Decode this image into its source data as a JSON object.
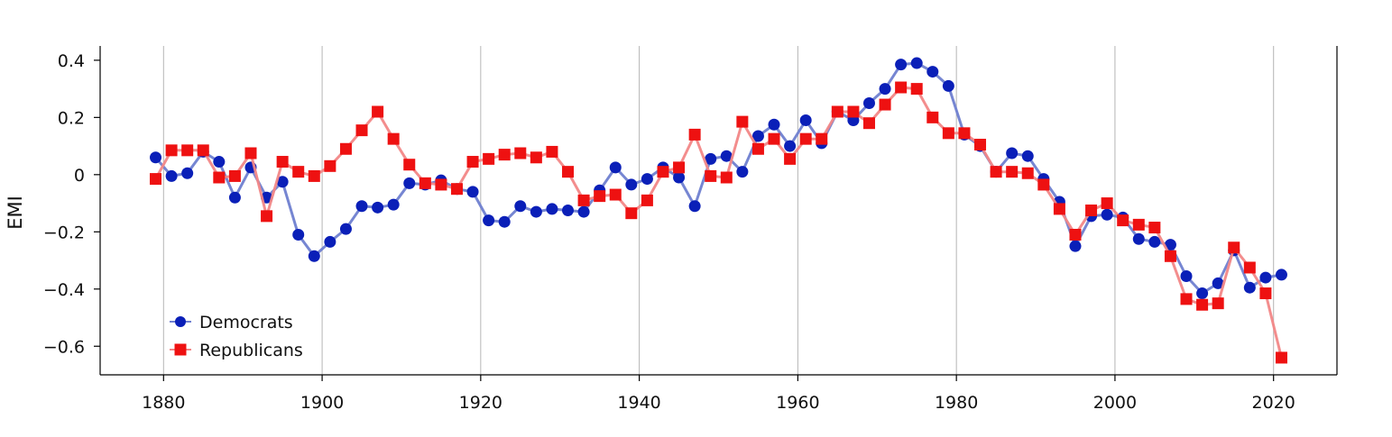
{
  "chart_data": {
    "type": "line",
    "ylabel": "EMI",
    "xlim": [
      1872,
      2028
    ],
    "ylim": [
      -0.7,
      0.45
    ],
    "x_ticks": [
      1880,
      1900,
      1920,
      1940,
      1960,
      1980,
      2000,
      2020
    ],
    "y_ticks": [
      0.4,
      0.2,
      0,
      -0.2,
      -0.4,
      -0.6
    ],
    "y_tick_labels": [
      "0.4",
      "0.2",
      "0",
      "−0.2",
      "−0.4",
      "−0.6"
    ],
    "grid": "vertical",
    "legend_position": "bottom-left",
    "series": [
      {
        "name": "Democrats",
        "color": "#0a1fb8",
        "line_color": "#6f7fd0",
        "marker": "circle",
        "x": [
          1879,
          1881,
          1883,
          1885,
          1887,
          1889,
          1891,
          1893,
          1895,
          1897,
          1899,
          1901,
          1903,
          1905,
          1907,
          1909,
          1911,
          1913,
          1915,
          1917,
          1919,
          1921,
          1923,
          1925,
          1927,
          1929,
          1931,
          1933,
          1935,
          1937,
          1939,
          1941,
          1943,
          1945,
          1947,
          1949,
          1951,
          1953,
          1955,
          1957,
          1959,
          1961,
          1963,
          1965,
          1967,
          1969,
          1971,
          1973,
          1975,
          1977,
          1979,
          1981,
          1983,
          1985,
          1987,
          1989,
          1991,
          1993,
          1995,
          1997,
          1999,
          2001,
          2003,
          2005,
          2007,
          2009,
          2011,
          2013,
          2015,
          2017,
          2019,
          2021
        ],
        "values": [
          0.06,
          -0.005,
          0.005,
          0.08,
          0.045,
          -0.08,
          0.025,
          -0.08,
          -0.025,
          -0.21,
          -0.285,
          -0.235,
          -0.19,
          -0.11,
          -0.115,
          -0.105,
          -0.03,
          -0.035,
          -0.02,
          -0.05,
          -0.06,
          -0.16,
          -0.165,
          -0.11,
          -0.13,
          -0.12,
          -0.125,
          -0.13,
          -0.055,
          0.025,
          -0.035,
          -0.015,
          0.025,
          -0.01,
          -0.11,
          0.055,
          0.065,
          0.01,
          0.135,
          0.175,
          0.1,
          0.19,
          0.11,
          0.22,
          0.19,
          0.25,
          0.3,
          0.385,
          0.39,
          0.36,
          0.31,
          0.14,
          0.1,
          0.01,
          0.075,
          0.065,
          -0.015,
          -0.095,
          -0.25,
          -0.145,
          -0.14,
          -0.15,
          -0.225,
          -0.235,
          -0.245,
          -0.355,
          -0.415,
          -0.38,
          -0.265,
          -0.395,
          -0.36,
          -0.35
        ]
      },
      {
        "name": "Republicans",
        "color": "#ee1111",
        "line_color": "#f28787",
        "marker": "square",
        "x": [
          1879,
          1881,
          1883,
          1885,
          1887,
          1889,
          1891,
          1893,
          1895,
          1897,
          1899,
          1901,
          1903,
          1905,
          1907,
          1909,
          1911,
          1913,
          1915,
          1917,
          1919,
          1921,
          1923,
          1925,
          1927,
          1929,
          1931,
          1933,
          1935,
          1937,
          1939,
          1941,
          1943,
          1945,
          1947,
          1949,
          1951,
          1953,
          1955,
          1957,
          1959,
          1961,
          1963,
          1965,
          1967,
          1969,
          1971,
          1973,
          1975,
          1977,
          1979,
          1981,
          1983,
          1985,
          1987,
          1989,
          1991,
          1993,
          1995,
          1997,
          1999,
          2001,
          2003,
          2005,
          2007,
          2009,
          2011,
          2013,
          2015,
          2017,
          2019,
          2021
        ],
        "values": [
          -0.015,
          0.085,
          0.085,
          0.085,
          -0.01,
          -0.005,
          0.075,
          -0.145,
          0.045,
          0.01,
          -0.005,
          0.03,
          0.09,
          0.155,
          0.22,
          0.125,
          0.035,
          -0.03,
          -0.035,
          -0.05,
          0.045,
          0.055,
          0.07,
          0.075,
          0.06,
          0.08,
          0.01,
          -0.09,
          -0.075,
          -0.07,
          -0.135,
          -0.09,
          0.01,
          0.025,
          0.14,
          -0.005,
          -0.01,
          0.185,
          0.09,
          0.125,
          0.055,
          0.125,
          0.125,
          0.22,
          0.22,
          0.18,
          0.245,
          0.305,
          0.3,
          0.2,
          0.145,
          0.145,
          0.105,
          0.01,
          0.01,
          0.005,
          -0.035,
          -0.12,
          -0.21,
          -0.125,
          -0.1,
          -0.16,
          -0.175,
          -0.185,
          -0.285,
          -0.435,
          -0.455,
          -0.45,
          -0.255,
          -0.325,
          -0.415,
          -0.64
        ]
      }
    ]
  }
}
